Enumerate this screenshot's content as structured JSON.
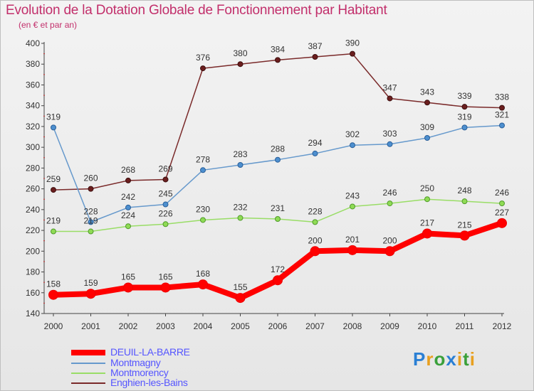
{
  "title": "Evolution de la Dotation Globale de Fonctionnement par Habitant",
  "subtitle": "(en € et par an)",
  "brand": "Proxiti",
  "chart_data": {
    "type": "line",
    "x": [
      "2000",
      "2001",
      "2002",
      "2003",
      "2004",
      "2005",
      "2006",
      "2007",
      "2008",
      "2009",
      "2010",
      "2011",
      "2012"
    ],
    "ylim": [
      140,
      400
    ],
    "yticks": [
      140,
      160,
      180,
      200,
      220,
      240,
      260,
      280,
      300,
      320,
      340,
      360,
      380,
      400
    ],
    "grid": false,
    "legend_position": "bottom-left",
    "series": [
      {
        "name": "DEUIL-LA-BARRE",
        "color": "#ff0000",
        "legend_color": "#5555ff",
        "values": [
          158,
          159,
          165,
          165,
          168,
          155,
          172,
          200,
          201,
          200,
          217,
          215,
          227
        ]
      },
      {
        "name": "Montmagny",
        "color": "#6699cc",
        "legend_color": "#5555ff",
        "values": [
          319,
          228,
          242,
          245,
          278,
          283,
          288,
          294,
          302,
          303,
          309,
          319,
          321
        ]
      },
      {
        "name": "Montmorency",
        "color": "#99dd66",
        "legend_color": "#5555ff",
        "values": [
          219,
          219,
          224,
          226,
          230,
          232,
          231,
          228,
          243,
          246,
          250,
          248,
          246
        ]
      },
      {
        "name": "Enghien-les-Bains",
        "color": "#7a2a2a",
        "legend_color": "#5555ff",
        "values": [
          259,
          260,
          268,
          269,
          376,
          380,
          384,
          387,
          390,
          347,
          343,
          339,
          338
        ]
      }
    ]
  }
}
